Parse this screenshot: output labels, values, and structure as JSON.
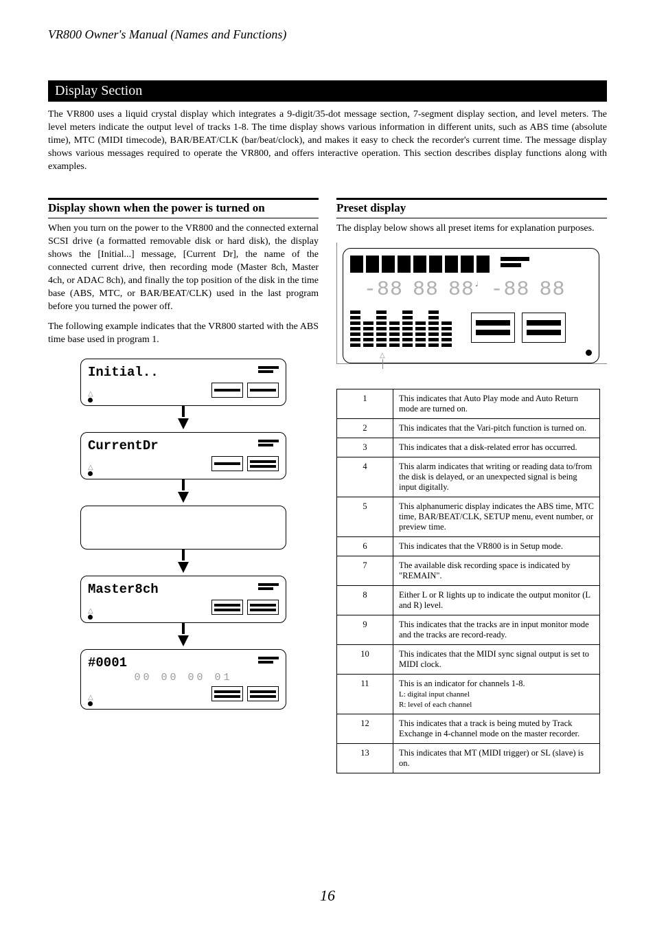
{
  "header": "VR800 Owner's Manual (Names and Functions)",
  "title_bar": "Display Section",
  "intro": "The VR800 uses a liquid crystal display which integrates a 9-digit/35-dot message section, 7-segment display section, and level meters.  The level meters indicate the output level of tracks 1-8.\nThe time display shows various information in different units, such as ABS time (absolute time), MTC (MIDI timecode), BAR/BEAT/CLK (bar/beat/clock), and makes it easy to check the recorder's current time.  The message display shows various messages required to operate the VR800, and offers interactive operation.  This section describes display functions along with examples.",
  "left": {
    "heading": "Display shown when the power is turned on",
    "para1": "When you turn on the power to the VR800 and the connected external SCSI drive (a formatted removable disk or hard disk), the display shows the [Initial...] message, [Current Dr], the name of the connected current drive, then recording mode (Master 8ch, Master 4ch, or ADAC 8ch), and finally the top position of the disk in the time base (ABS, MTC, or BAR/BEAT/CLK) used in the last program before you turned the power off.",
    "para2": "The following example indicates that the VR800 started with the ABS time base used in program 1.",
    "panels": [
      {
        "msg": "Initial..",
        "lr_bars": [
          1,
          1
        ]
      },
      {
        "msg": "CurrentDr",
        "lr_bars": [
          1,
          2
        ]
      },
      {
        "blank": true
      },
      {
        "msg": "Master8ch",
        "lr_bars": [
          2,
          2
        ]
      },
      {
        "msg": "#0001",
        "time": "00  00  00  01",
        "lr_bars": [
          2,
          2
        ]
      }
    ]
  },
  "right": {
    "heading": "Preset display",
    "para": "The display below shows all preset items for explanation purposes.",
    "seg": {
      "a": "-88",
      "b": "88",
      "c": "88",
      "note": "♩",
      "d": "-88",
      "e": "88"
    },
    "channels": [
      7,
      5,
      7,
      5,
      7,
      5,
      7,
      5
    ],
    "table": [
      {
        "k": "1",
        "v": "This indicates that Auto Play mode and Auto Return mode are turned on."
      },
      {
        "k": "2",
        "v": "This indicates that the Vari-pitch function is turned on."
      },
      {
        "k": "3",
        "v": "This indicates that a disk-related error has occurred."
      },
      {
        "k": "4",
        "v": "This alarm indicates that writing or reading data to/from the disk is delayed, or an unexpected signal is being input digitally."
      },
      {
        "k": "5",
        "v": "This alphanumeric display indicates the ABS time, MTC time, BAR/BEAT/CLK, SETUP menu, event number, or preview time."
      },
      {
        "k": "6",
        "v": "This indicates that the VR800 is in Setup mode."
      },
      {
        "k": "7",
        "v": "The available disk recording space is indicated by \"REMAIN\"."
      },
      {
        "k": "8",
        "v": "Either L or R lights up to indicate the output monitor (L and R) level."
      },
      {
        "k": "9",
        "v": "This indicates that the tracks are in input monitor mode and the tracks are record-ready."
      },
      {
        "k": "10",
        "v": "This indicates that the MIDI sync signal output is set to MIDI clock."
      },
      {
        "k": "11",
        "v": "This is an indicator for channels 1-8.\nL: digital input channel\nR: level of each channel",
        "sub": true
      },
      {
        "k": "12",
        "v": "This indicates that a track is being muted by Track Exchange in 4-channel mode on the master recorder."
      },
      {
        "k": "13",
        "v": "This indicates that MT (MIDI trigger) or SL (slave) is on."
      }
    ]
  },
  "page_number": "16",
  "colors": {
    "text": "#000000",
    "seg_ghost": "#b0b0b0",
    "rule": "#000000",
    "bracket": "#888888"
  }
}
